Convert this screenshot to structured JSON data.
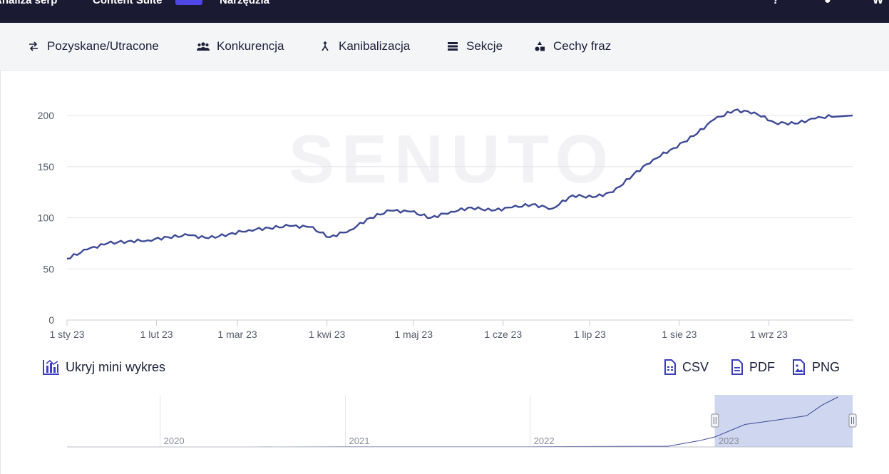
{
  "topbar": {
    "items": [
      "Analiza serp",
      "Content Suite",
      "Narzędzia"
    ]
  },
  "tabs": [
    {
      "label": "Pozyskane/Utracone",
      "icon": "swap-arrows-icon"
    },
    {
      "label": "Konkurencja",
      "icon": "users-icon"
    },
    {
      "label": "Kanibalizacja",
      "icon": "merge-icon"
    },
    {
      "label": "Sekcje",
      "icon": "sections-icon"
    },
    {
      "label": "Cechy fraz",
      "icon": "shapes-icon"
    }
  ],
  "watermark": "SENUTO",
  "toolbar": {
    "mini_toggle_label": "Ukryj mini wykres",
    "csv_label": "CSV",
    "pdf_label": "PDF",
    "png_label": "PNG"
  },
  "colors": {
    "line": "#3d4a95",
    "accent": "#3b3fbf",
    "navbar": "#1b1a33",
    "selection": "#cfd6ef"
  },
  "chart_data": {
    "type": "line",
    "series": [
      {
        "x": [
          "2023-01-01",
          "2023-01-08",
          "2023-01-15",
          "2023-01-22",
          "2023-01-29",
          "2023-02-05",
          "2023-02-12",
          "2023-02-19",
          "2023-02-26",
          "2023-03-05",
          "2023-03-12",
          "2023-03-19",
          "2023-03-26",
          "2023-04-02",
          "2023-04-09",
          "2023-04-16",
          "2023-04-23",
          "2023-04-30",
          "2023-05-07",
          "2023-05-14",
          "2023-05-21",
          "2023-05-28",
          "2023-06-04",
          "2023-06-11",
          "2023-06-18",
          "2023-06-25",
          "2023-07-02",
          "2023-07-09",
          "2023-07-16",
          "2023-07-23",
          "2023-07-30",
          "2023-08-06",
          "2023-08-13",
          "2023-08-20",
          "2023-08-27",
          "2023-09-03",
          "2023-09-10",
          "2023-09-17",
          "2023-09-24"
        ],
        "values": [
          60,
          69,
          75,
          77,
          78,
          81,
          83,
          80,
          84,
          88,
          90,
          92,
          91,
          81,
          88,
          100,
          107,
          106,
          100,
          106,
          110,
          107,
          110,
          113,
          109,
          122,
          120,
          125,
          142,
          157,
          168,
          180,
          196,
          205,
          203,
          193,
          192,
          197,
          200
        ]
      }
    ],
    "x_ticks": [
      "1 sty 23",
      "1 lut 23",
      "1 mar 23",
      "1 kwi 23",
      "1 maj 23",
      "1 cze 23",
      "1 lip 23",
      "1 sie 23",
      "1 wrz 23"
    ],
    "ylim": [
      0,
      200
    ],
    "y_ticks": [
      0,
      50,
      100,
      150,
      200
    ],
    "grid": true,
    "navigator": {
      "year_labels": [
        "2020",
        "2021",
        "2022",
        "2023"
      ],
      "series": [
        {
          "x": [
            "2020-01",
            "2020-07",
            "2021-01",
            "2021-07",
            "2022-01",
            "2022-07",
            "2022-10",
            "2022-12",
            "2023-01",
            "2023-03",
            "2023-05",
            "2023-07",
            "2023-08",
            "2023-09"
          ],
          "values": [
            0,
            0,
            1,
            1,
            1,
            2,
            3,
            25,
            40,
            90,
            107,
            125,
            168,
            200
          ]
        }
      ],
      "selected_range": [
        "2023-01-01",
        "2023-09-30"
      ]
    }
  }
}
